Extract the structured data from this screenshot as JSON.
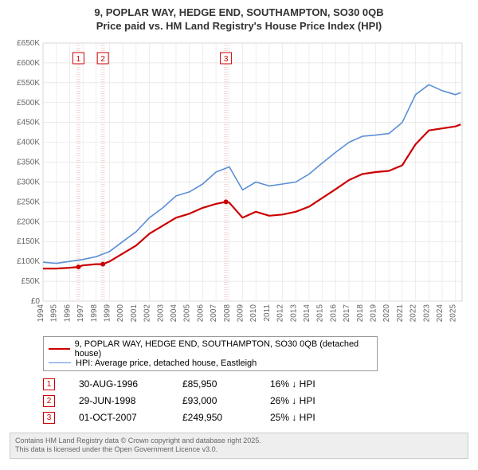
{
  "title_line1": "9, POPLAR WAY, HEDGE END, SOUTHAMPTON, SO30 0QB",
  "title_line2": "Price paid vs. HM Land Registry's House Price Index (HPI)",
  "title_fontsize": 13,
  "chart": {
    "type": "line",
    "background_color": "#ffffff",
    "grid_color": "#dddddd",
    "axis_label_color": "#666666",
    "axis_label_fontsize": 10,
    "xlim": [
      1994,
      2025.5
    ],
    "ylim": [
      0,
      650
    ],
    "x_ticks": [
      1994,
      1995,
      1996,
      1997,
      1998,
      1999,
      2000,
      2001,
      2002,
      2003,
      2004,
      2005,
      2006,
      2007,
      2008,
      2009,
      2010,
      2011,
      2012,
      2013,
      2014,
      2015,
      2016,
      2017,
      2018,
      2019,
      2020,
      2021,
      2022,
      2023,
      2024,
      2025
    ],
    "y_ticks": [
      0,
      50,
      100,
      150,
      200,
      250,
      300,
      350,
      400,
      450,
      500,
      550,
      600,
      650
    ],
    "y_tick_prefix": "£",
    "y_tick_suffix": "K",
    "y_zero_label": "£0",
    "series": [
      {
        "label": "9, POPLAR WAY, HEDGE END, SOUTHAMPTON, SO30 0QB (detached house)",
        "color": "#cc0000",
        "line_width": 2.2,
        "x": [
          1994,
          1995,
          1996,
          1996.66,
          1997,
          1998,
          1998.5,
          1999,
          2000,
          2001,
          2002,
          2003,
          2004,
          2005,
          2006,
          2007,
          2007.75,
          2008,
          2009,
          2010,
          2011,
          2012,
          2013,
          2014,
          2015,
          2016,
          2017,
          2018,
          2019,
          2020,
          2021,
          2022,
          2023,
          2024,
          2025,
          2025.4
        ],
        "y": [
          82,
          82,
          84,
          86,
          90,
          93,
          93,
          100,
          120,
          140,
          170,
          190,
          210,
          220,
          235,
          245,
          250,
          248,
          210,
          225,
          215,
          218,
          225,
          238,
          260,
          282,
          305,
          320,
          325,
          328,
          342,
          395,
          430,
          435,
          440,
          445
        ],
        "markers": [
          {
            "x": 1996.66,
            "y": 86,
            "label": "1"
          },
          {
            "x": 1998.5,
            "y": 93,
            "label": "2"
          },
          {
            "x": 2007.75,
            "y": 250,
            "label": "3"
          }
        ],
        "marker_style": "circle",
        "marker_radius": 3,
        "marker_flag_color": "#cc0000",
        "marker_flag_bg": "#ffffff"
      },
      {
        "label": "HPI: Average price, detached house, Eastleigh",
        "color": "#5b8fd6",
        "line_width": 1.6,
        "x": [
          1994,
          1995,
          1996,
          1997,
          1998,
          1999,
          2000,
          2001,
          2002,
          2003,
          2004,
          2005,
          2006,
          2007,
          2008,
          2009,
          2010,
          2011,
          2012,
          2013,
          2014,
          2015,
          2016,
          2017,
          2018,
          2019,
          2020,
          2021,
          2022,
          2023,
          2024,
          2025,
          2025.4
        ],
        "y": [
          98,
          95,
          100,
          105,
          112,
          125,
          150,
          175,
          210,
          235,
          265,
          275,
          295,
          325,
          338,
          280,
          300,
          290,
          295,
          300,
          320,
          348,
          375,
          400,
          415,
          418,
          422,
          450,
          520,
          545,
          530,
          520,
          525
        ]
      }
    ],
    "transaction_bands": [
      {
        "x": 1996.66,
        "color": "#f4d6d6"
      },
      {
        "x": 1998.5,
        "color": "#f4d6d6"
      },
      {
        "x": 2007.75,
        "color": "#f4d6d6"
      }
    ]
  },
  "legend": {
    "rows": [
      {
        "color": "#cc0000",
        "text": "9, POPLAR WAY, HEDGE END, SOUTHAMPTON, SO30 0QB (detached house)"
      },
      {
        "color": "#5b8fd6",
        "text": "HPI: Average price, detached house, Eastleigh"
      }
    ]
  },
  "transactions": [
    {
      "num": "1",
      "date": "30-AUG-1996",
      "price": "£85,950",
      "delta": "16% ↓ HPI",
      "color": "#cc0000"
    },
    {
      "num": "2",
      "date": "29-JUN-1998",
      "price": "£93,000",
      "delta": "26% ↓ HPI",
      "color": "#cc0000"
    },
    {
      "num": "3",
      "date": "01-OCT-2007",
      "price": "£249,950",
      "delta": "25% ↓ HPI",
      "color": "#cc0000"
    }
  ],
  "footer": {
    "line1": "Contains HM Land Registry data © Crown copyright and database right 2025.",
    "line2": "This data is licensed under the Open Government Licence v3.0."
  }
}
